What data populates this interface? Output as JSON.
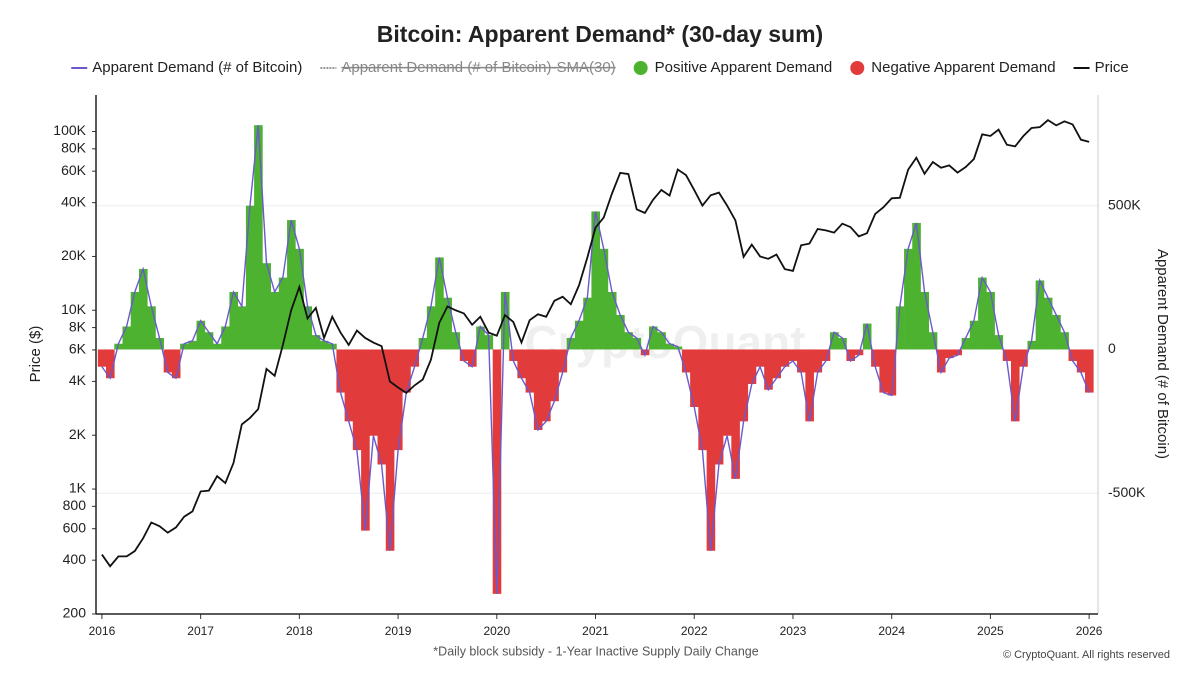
{
  "chart_data": {
    "type": "demand-price",
    "title": "Bitcoin: Apparent Demand* (30-day sum)",
    "ylabel": "Price ($)",
    "y2label": "Apparent Demand (# of Bitcoin)",
    "footnote": "*Daily block subsidy - 1-Year Inactive Supply Daily Change",
    "credit": "© CryptoQuant. All rights reserved",
    "watermark": "CryptoQuant",
    "log_y": true,
    "grid": true,
    "xlim": [
      2015.94,
      2026.09
    ],
    "xticks": [
      2016,
      2017,
      2018,
      2019,
      2020,
      2021,
      2022,
      2023,
      2024,
      2025,
      2026
    ],
    "ylim": [
      200,
      160000
    ],
    "yticks": [
      200,
      400,
      600,
      800,
      {
        "value": 1000,
        "label": "1K"
      },
      {
        "value": 2000,
        "label": "2K"
      },
      {
        "value": 4000,
        "label": "4K"
      },
      {
        "value": 6000,
        "label": "6K"
      },
      {
        "value": 8000,
        "label": "8K"
      },
      {
        "value": 10000,
        "label": "10K"
      },
      {
        "value": 20000,
        "label": "20K"
      },
      {
        "value": 40000,
        "label": "40K"
      },
      {
        "value": 60000,
        "label": "60K"
      },
      {
        "value": 80000,
        "label": "80K"
      },
      {
        "value": 100000,
        "label": "100K"
      }
    ],
    "y2lim": [
      -920000,
      885000
    ],
    "y2ticks": [
      {
        "value": -500000,
        "label": "-500K"
      },
      0,
      {
        "value": 500000,
        "label": "500K"
      }
    ],
    "x": [
      2016,
      2016.083,
      2016.167,
      2016.25,
      2016.333,
      2016.417,
      2016.5,
      2016.583,
      2016.667,
      2016.75,
      2016.833,
      2016.917,
      2017,
      2017.083,
      2017.167,
      2017.25,
      2017.333,
      2017.417,
      2017.5,
      2017.583,
      2017.667,
      2017.75,
      2017.833,
      2017.917,
      2018,
      2018.083,
      2018.167,
      2018.25,
      2018.333,
      2018.417,
      2018.5,
      2018.583,
      2018.667,
      2018.75,
      2018.833,
      2018.917,
      2019,
      2019.083,
      2019.167,
      2019.25,
      2019.333,
      2019.417,
      2019.5,
      2019.583,
      2019.667,
      2019.75,
      2019.833,
      2019.917,
      2020,
      2020.083,
      2020.167,
      2020.25,
      2020.333,
      2020.417,
      2020.5,
      2020.583,
      2020.667,
      2020.75,
      2020.833,
      2020.917,
      2021,
      2021.083,
      2021.167,
      2021.25,
      2021.333,
      2021.417,
      2021.5,
      2021.583,
      2021.667,
      2021.75,
      2021.833,
      2021.917,
      2022,
      2022.083,
      2022.167,
      2022.25,
      2022.333,
      2022.417,
      2022.5,
      2022.583,
      2022.667,
      2022.75,
      2022.833,
      2022.917,
      2023,
      2023.083,
      2023.167,
      2023.25,
      2023.333,
      2023.417,
      2023.5,
      2023.583,
      2023.667,
      2023.75,
      2023.833,
      2023.917,
      2024,
      2024.083,
      2024.167,
      2024.25,
      2024.333,
      2024.417,
      2024.5,
      2024.583,
      2024.667,
      2024.75,
      2024.833,
      2024.917,
      2025,
      2025.083,
      2025.167,
      2025.25,
      2025.333,
      2025.417,
      2025.5,
      2025.583,
      2025.667,
      2025.75,
      2025.833,
      2025.917,
      2026
    ],
    "series": [
      {
        "name": "Apparent Demand (# of Bitcoin)",
        "color": "#6a5acd",
        "axis": "y2",
        "values": [
          -60000,
          -100000,
          20000,
          80000,
          200000,
          280000,
          150000,
          40000,
          -80000,
          -100000,
          20000,
          30000,
          100000,
          60000,
          20000,
          80000,
          200000,
          150000,
          500000,
          780000,
          300000,
          200000,
          250000,
          450000,
          350000,
          150000,
          50000,
          30000,
          20000,
          -150000,
          -250000,
          -350000,
          -630000,
          -300000,
          -400000,
          -700000,
          -350000,
          -150000,
          -60000,
          40000,
          150000,
          320000,
          180000,
          60000,
          -40000,
          -60000,
          80000,
          50000,
          -850000,
          200000,
          -40000,
          -100000,
          -150000,
          -280000,
          -250000,
          -180000,
          -80000,
          40000,
          100000,
          180000,
          480000,
          350000,
          200000,
          120000,
          60000,
          40000,
          -20000,
          80000,
          60000,
          20000,
          10000,
          -80000,
          -200000,
          -350000,
          -700000,
          -400000,
          -300000,
          -450000,
          -250000,
          -120000,
          -60000,
          -140000,
          -100000,
          -60000,
          -40000,
          -80000,
          -250000,
          -80000,
          -40000,
          60000,
          40000,
          -40000,
          -20000,
          90000,
          -60000,
          -150000,
          -160000,
          150000,
          350000,
          440000,
          200000,
          60000,
          -80000,
          -30000,
          -20000,
          40000,
          100000,
          250000,
          200000,
          50000,
          -40000,
          -250000,
          -60000,
          30000,
          240000,
          180000,
          120000,
          60000,
          -40000,
          -80000,
          -150000
        ]
      },
      {
        "name": "Apparent Demand (# of Bitcoin)-SMA(30)",
        "color": "#999999",
        "visible": false
      },
      {
        "name": "Positive Apparent Demand",
        "color": "#4cb22f",
        "fill": "positive"
      },
      {
        "name": "Negative Apparent Demand",
        "color": "#e23b3b",
        "fill": "negative"
      },
      {
        "name": "Price",
        "color": "#111111",
        "axis": "y",
        "values": [
          430,
          370,
          420,
          420,
          450,
          530,
          650,
          620,
          570,
          610,
          700,
          750,
          970,
          980,
          1180,
          1080,
          1400,
          2300,
          2500,
          2800,
          4700,
          4300,
          6400,
          10000,
          13500,
          9000,
          10300,
          7000,
          9200,
          7500,
          6400,
          7700,
          7000,
          6600,
          6300,
          4000,
          3700,
          3450,
          3800,
          4100,
          5300,
          8500,
          10500,
          10000,
          9600,
          8300,
          9200,
          7500,
          7200,
          9400,
          8600,
          6600,
          8800,
          9500,
          9200,
          11300,
          11900,
          10800,
          13800,
          19700,
          29000,
          33000,
          45000,
          58700,
          57800,
          36700,
          35000,
          41500,
          47100,
          43800,
          61300,
          57000,
          47000,
          38500,
          44000,
          45500,
          38500,
          31800,
          19900,
          23300,
          20000,
          19400,
          20500,
          17000,
          16600,
          23100,
          23600,
          28500,
          28000,
          27200,
          30500,
          29200,
          25900,
          27000,
          34600,
          37700,
          42300,
          42600,
          61200,
          71300,
          58000,
          67500,
          62700,
          64600,
          58900,
          63300,
          70200,
          96400,
          94400,
          102400,
          84300,
          82500,
          94200,
          104600,
          105700,
          115700,
          108200,
          114000,
          109500,
          90000,
          87500
        ]
      }
    ]
  }
}
